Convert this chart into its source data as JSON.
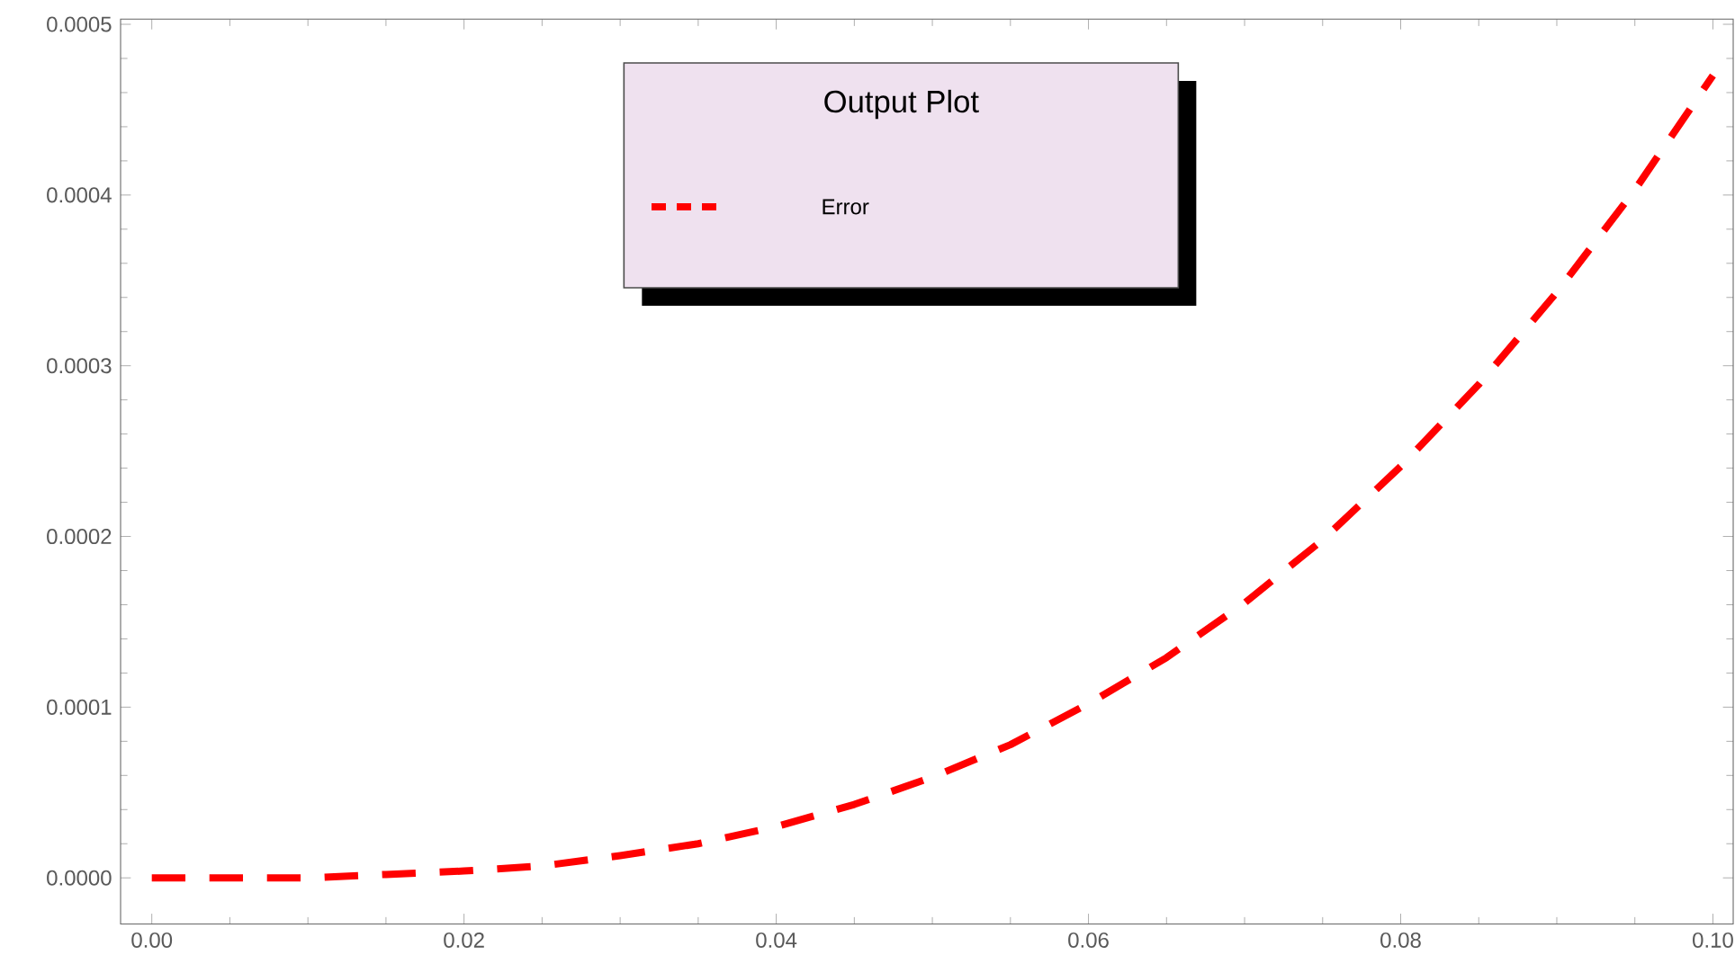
{
  "chart_data": {
    "type": "line",
    "legend_title": "Output Plot",
    "legend": "top",
    "line_style": "dashed",
    "grid": false,
    "xlim": [
      -0.002,
      0.1013
    ],
    "ylim": [
      -2.7e-05,
      0.000503
    ],
    "xticks": [
      {
        "value": 0,
        "label": "0.00"
      },
      {
        "value": 0.02,
        "label": "0.02"
      },
      {
        "value": 0.04,
        "label": "0.04"
      },
      {
        "value": 0.06,
        "label": "0.06"
      },
      {
        "value": 0.08,
        "label": "0.08"
      },
      {
        "value": 0.1,
        "label": "0.10"
      }
    ],
    "yticks": [
      {
        "value": 0,
        "label": "0.0000"
      },
      {
        "value": 0.0001,
        "label": "0.0001"
      },
      {
        "value": 0.0002,
        "label": "0.0002"
      },
      {
        "value": 0.0003,
        "label": "0.0003"
      },
      {
        "value": 0.0004,
        "label": "0.0004"
      },
      {
        "value": 0.0005,
        "label": "0.0005"
      }
    ],
    "x": [
      0,
      0.005,
      0.01,
      0.015,
      0.02,
      0.025,
      0.03,
      0.035,
      0.04,
      0.045,
      0.05,
      0.055,
      0.06,
      0.065,
      0.07,
      0.075,
      0.08,
      0.085,
      0.09,
      0.095,
      0.1
    ],
    "series": [
      {
        "name": "Error",
        "color": "#ff0000",
        "values": [
          0,
          0,
          0,
          2e-06,
          4e-06,
          7e-06,
          1.3e-05,
          2e-05,
          3e-05,
          4.3e-05,
          5.9e-05,
          7.8e-05,
          0.000102,
          0.000129,
          0.000161,
          0.000198,
          0.000241,
          0.000289,
          0.000343,
          0.000403,
          0.00047
        ]
      }
    ]
  }
}
